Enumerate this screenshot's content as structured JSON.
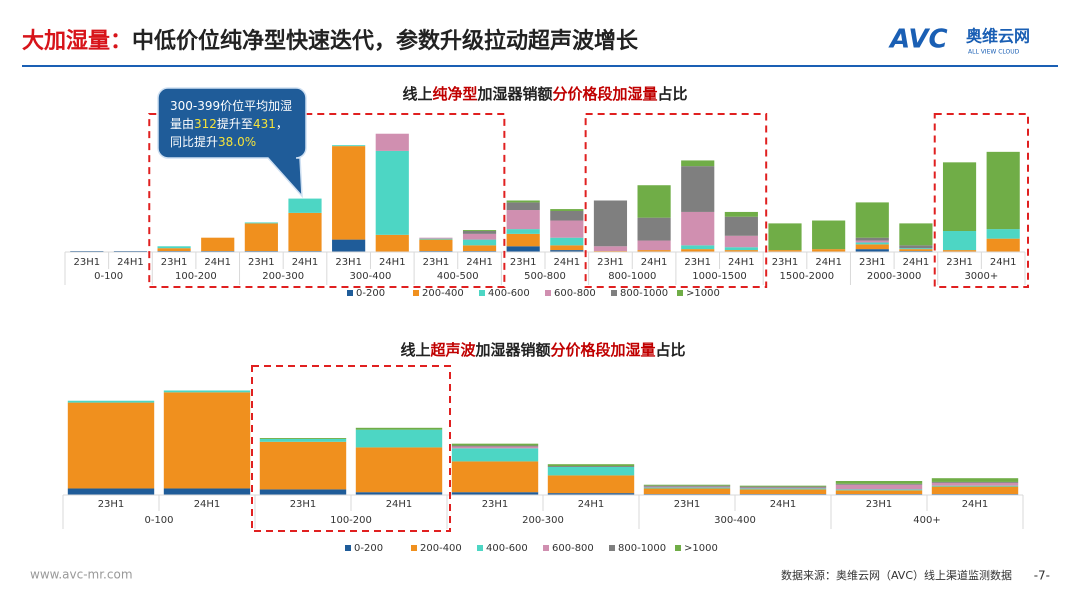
{
  "header": {
    "title": [
      {
        "text": "大加湿量：",
        "highlight": true
      },
      {
        "text": "中低价位纯净型快速迭代，参数升级拉动超声波增长"
      }
    ],
    "logo": "AVC",
    "logo_cn": "奥维云网",
    "logo_en": "ALL VIEW CLOUD"
  },
  "callout": [
    [
      {
        "text": "300-399价位平均加湿"
      }
    ],
    [
      {
        "text": "量由"
      },
      {
        "text": "312",
        "highlight": true
      },
      {
        "text": "提升至"
      },
      {
        "text": "431",
        "highlight": true
      },
      {
        "text": "，"
      }
    ],
    [
      {
        "text": "同比提升"
      },
      {
        "text": "38.0%",
        "highlight": true
      }
    ]
  ],
  "footer": {
    "site": "www.avc-mr.com",
    "source": "数据来源：奥维云网（AVC）线上渠道监测数据",
    "page": "-7-"
  },
  "chart_data": [
    {
      "type": "stacked_bar",
      "title": [
        {
          "text": "线上"
        },
        {
          "text": "纯净型",
          "highlight": true
        },
        {
          "text": "加湿器销额"
        },
        {
          "text": "分价格段加湿量",
          "highlight": true
        },
        {
          "text": "占比"
        }
      ],
      "groups": [
        "0-100",
        "100-200",
        "200-300",
        "300-400",
        "400-500",
        "500-800",
        "800-1000",
        "1000-1500",
        "1500-2000",
        "2000-3000",
        "3000+"
      ],
      "categories": [
        "23H1",
        "24H1",
        "23H1",
        "24H1",
        "23H1",
        "24H1",
        "23H1",
        "24H1",
        "23H1",
        "24H1",
        "23H1",
        "24H1",
        "23H1",
        "24H1",
        "23H1",
        "24H1",
        "23H1",
        "24H1",
        "23H1",
        "24H1",
        "23H1",
        "24H1"
      ],
      "boxed_groups": [
        [
          1,
          4
        ],
        [
          6,
          7
        ],
        [
          10,
          10
        ]
      ],
      "ylim": [
        0,
        130
      ],
      "series": [
        {
          "name": "0-200",
          "color": "#1f5c99",
          "values": [
            1,
            1,
            1,
            1,
            1,
            1,
            13,
            0,
            1,
            1,
            6,
            2,
            0,
            0,
            0,
            0,
            0,
            0,
            3,
            1,
            0,
            0
          ]
        },
        {
          "name": "200-400",
          "color": "#f0901e",
          "values": [
            0,
            0,
            3,
            14,
            29,
            40,
            98,
            18,
            12,
            6,
            13,
            5,
            1,
            2,
            3,
            2,
            2,
            3,
            5,
            2,
            2,
            14
          ]
        },
        {
          "name": "400-600",
          "color": "#4dd6c4",
          "values": [
            0,
            0,
            2,
            0,
            1,
            15,
            1,
            88,
            1,
            6,
            5,
            8,
            0,
            0,
            4,
            3,
            0,
            0,
            2,
            1,
            20,
            10
          ]
        },
        {
          "name": "600-800",
          "color": "#d08fb0",
          "values": [
            0,
            0,
            0,
            0,
            0,
            0,
            0,
            18,
            1,
            6,
            20,
            18,
            5,
            10,
            35,
            12,
            0,
            0,
            2,
            0,
            0,
            0
          ]
        },
        {
          "name": "800-1000",
          "color": "#7f7f7f",
          "values": [
            0,
            0,
            0,
            0,
            0,
            0,
            0,
            0,
            0,
            3,
            8,
            10,
            48,
            24,
            48,
            20,
            0,
            0,
            3,
            3,
            0,
            0
          ]
        },
        {
          "name": ">1000",
          "color": "#70ad47",
          "values": [
            0,
            0,
            0,
            0,
            0,
            0,
            0,
            0,
            0,
            1,
            2,
            2,
            0,
            34,
            6,
            5,
            28,
            30,
            37,
            23,
            72,
            81
          ]
        }
      ]
    },
    {
      "type": "stacked_bar",
      "title": [
        {
          "text": "线上"
        },
        {
          "text": "超声波",
          "highlight": true
        },
        {
          "text": "加湿器销额"
        },
        {
          "text": "分价格段加湿量",
          "highlight": true
        },
        {
          "text": "占比"
        }
      ],
      "groups": [
        "0-100",
        "100-200",
        "200-300",
        "300-400",
        "400+"
      ],
      "categories": [
        "23H1",
        "24H1",
        "23H1",
        "24H1",
        "23H1",
        "24H1",
        "23H1",
        "24H1",
        "23H1",
        "24H1"
      ],
      "boxed_groups": [
        [
          1,
          1
        ]
      ],
      "ylim": [
        0,
        120
      ],
      "series": [
        {
          "name": "0-200",
          "color": "#1f5c99",
          "values": [
            7,
            7,
            6,
            3,
            3,
            2,
            1,
            1,
            1,
            1
          ]
        },
        {
          "name": "200-400",
          "color": "#f0901e",
          "values": [
            92,
            103,
            51,
            48,
            33,
            19,
            6,
            5,
            4,
            8
          ]
        },
        {
          "name": "400-600",
          "color": "#4dd6c4",
          "values": [
            2,
            2,
            3,
            19,
            14,
            9,
            1,
            1,
            1,
            1
          ]
        },
        {
          "name": "600-800",
          "color": "#d08fb0",
          "values": [
            0,
            0,
            0,
            0,
            2,
            0,
            1,
            1,
            5,
            3
          ]
        },
        {
          "name": "800-1000",
          "color": "#7f7f7f",
          "values": [
            0,
            0,
            0,
            0,
            1,
            1,
            1,
            1,
            1,
            1
          ]
        },
        {
          "name": ">1000",
          "color": "#70ad47",
          "values": [
            0,
            0,
            1,
            2,
            2,
            2,
            1,
            1,
            3,
            4
          ]
        }
      ]
    }
  ]
}
